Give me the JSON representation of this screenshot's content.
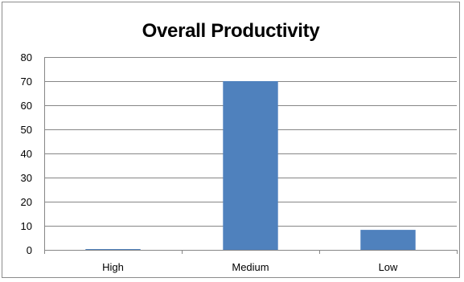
{
  "chart_data": {
    "type": "bar",
    "title": "Overall Productivity",
    "categories": [
      "High",
      "Medium",
      "Low"
    ],
    "values": [
      0.3,
      70,
      8.3
    ],
    "ylim": [
      0,
      80
    ],
    "yticks": [
      0,
      10,
      20,
      30,
      40,
      50,
      60,
      70,
      80
    ],
    "grid": true,
    "legend": "none",
    "bar_color": "#4f81bd",
    "gridline_color": "#868686"
  }
}
